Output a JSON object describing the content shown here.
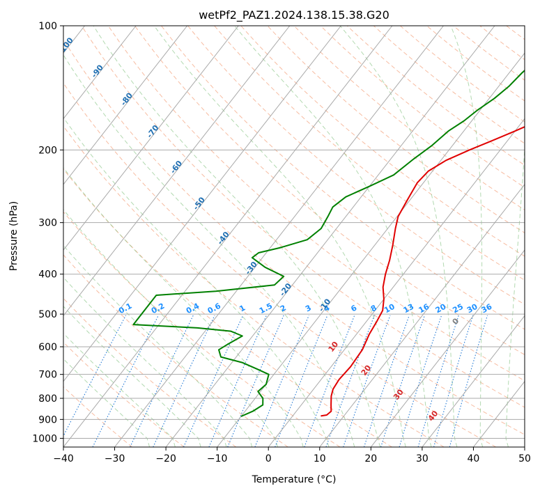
{
  "chart_data": {
    "type": "line",
    "title": "wetPf2_PAZ1.2024.138.15.38.G20",
    "xlabel": "Temperature (°C)",
    "ylabel": "Pressure (hPa)",
    "xlim": [
      -40,
      50
    ],
    "ylim": [
      1050,
      100
    ],
    "y_scale": "log",
    "grid": true,
    "x_ticks": [
      -40,
      -30,
      -20,
      -10,
      0,
      10,
      20,
      30,
      40,
      50
    ],
    "y_ticks": [
      100,
      200,
      300,
      400,
      500,
      600,
      700,
      800,
      900,
      1000
    ],
    "series": [
      {
        "color": "#e00000",
        "points": [
          {
            "p": 883,
            "t": 5.5
          },
          {
            "p": 878,
            "t": 6.5
          },
          {
            "p": 860,
            "t": 6.8
          },
          {
            "p": 830,
            "t": 5.8
          },
          {
            "p": 790,
            "t": 4.5
          },
          {
            "p": 760,
            "t": 3.8
          },
          {
            "p": 720,
            "t": 3.5
          },
          {
            "p": 670,
            "t": 3.8
          },
          {
            "p": 610,
            "t": 3.5
          },
          {
            "p": 560,
            "t": 2.5
          },
          {
            "p": 520,
            "t": 2.0
          },
          {
            "p": 490,
            "t": 1.5
          },
          {
            "p": 460,
            "t": 0.0
          },
          {
            "p": 430,
            "t": -2.0
          },
          {
            "p": 400,
            "t": -3.5
          },
          {
            "p": 370,
            "t": -4.8
          },
          {
            "p": 340,
            "t": -6.5
          },
          {
            "p": 310,
            "t": -8.5
          },
          {
            "p": 290,
            "t": -9.8
          },
          {
            "p": 265,
            "t": -10.5
          },
          {
            "p": 240,
            "t": -11.2
          },
          {
            "p": 225,
            "t": -10.8
          },
          {
            "p": 212,
            "t": -9.0
          },
          {
            "p": 200,
            "t": -6.0
          },
          {
            "p": 190,
            "t": -3.0
          },
          {
            "p": 180,
            "t": 0.0
          },
          {
            "p": 170,
            "t": 3.0
          },
          {
            "p": 158,
            "t": 7.0
          },
          {
            "p": 148,
            "t": 9.5
          },
          {
            "p": 135,
            "t": 12.5
          },
          {
            "p": 120,
            "t": 16.0
          },
          {
            "p": 110,
            "t": 19.0
          },
          {
            "p": 100,
            "t": 22.0
          }
        ]
      },
      {
        "color": "#008000",
        "points": [
          {
            "p": 885,
            "t": -10.0
          },
          {
            "p": 860,
            "t": -8.5
          },
          {
            "p": 830,
            "t": -7.5
          },
          {
            "p": 800,
            "t": -8.5
          },
          {
            "p": 770,
            "t": -10.5
          },
          {
            "p": 740,
            "t": -10.0
          },
          {
            "p": 700,
            "t": -11.0
          },
          {
            "p": 680,
            "t": -14.0
          },
          {
            "p": 655,
            "t": -18.0
          },
          {
            "p": 635,
            "t": -23.0
          },
          {
            "p": 610,
            "t": -24.5
          },
          {
            "p": 590,
            "t": -23.5
          },
          {
            "p": 565,
            "t": -22.0
          },
          {
            "p": 550,
            "t": -25.0
          },
          {
            "p": 540,
            "t": -32.0
          },
          {
            "p": 530,
            "t": -45.0
          },
          {
            "p": 450,
            "t": -45.0
          },
          {
            "p": 440,
            "t": -34.0
          },
          {
            "p": 425,
            "t": -23.5
          },
          {
            "p": 405,
            "t": -23.0
          },
          {
            "p": 385,
            "t": -28.0
          },
          {
            "p": 365,
            "t": -32.0
          },
          {
            "p": 355,
            "t": -31.5
          },
          {
            "p": 345,
            "t": -28.0
          },
          {
            "p": 330,
            "t": -24.0
          },
          {
            "p": 310,
            "t": -23.0
          },
          {
            "p": 290,
            "t": -23.5
          },
          {
            "p": 275,
            "t": -24.0
          },
          {
            "p": 260,
            "t": -23.0
          },
          {
            "p": 245,
            "t": -20.0
          },
          {
            "p": 230,
            "t": -17.0
          },
          {
            "p": 210,
            "t": -15.5
          },
          {
            "p": 195,
            "t": -14.0
          },
          {
            "p": 180,
            "t": -13.0
          },
          {
            "p": 170,
            "t": -11.5
          },
          {
            "p": 160,
            "t": -10.5
          },
          {
            "p": 150,
            "t": -9.0
          },
          {
            "p": 140,
            "t": -8.0
          },
          {
            "p": 130,
            "t": -7.5
          },
          {
            "p": 120,
            "t": -6.5
          },
          {
            "p": 110,
            "t": -4.5
          },
          {
            "p": 100,
            "t": -2.0
          }
        ]
      }
    ],
    "dry_adiabat_labels": [
      -100,
      -90,
      -80,
      -70,
      -60,
      -50,
      -40,
      -30,
      -20,
      -10,
      0,
      10,
      20,
      30,
      40
    ],
    "mixing_ratio_labels": [
      0.1,
      0.2,
      0.4,
      0.6,
      1,
      1.5,
      2,
      3,
      4,
      6,
      8,
      10,
      13,
      16,
      20,
      25,
      30,
      36
    ]
  }
}
